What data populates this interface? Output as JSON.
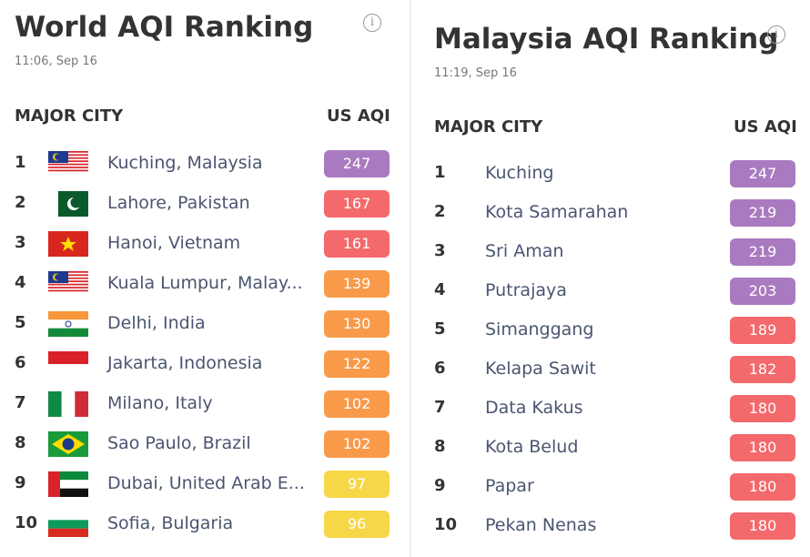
{
  "world": {
    "title": "World AQI Ranking",
    "updated": "11:06, Sep 16",
    "columns": [
      "MAJOR CITY",
      "US AQI"
    ],
    "rows": [
      {
        "rank": 1,
        "city": "Kuching, Malaysia",
        "aqi": 247
      },
      {
        "rank": 2,
        "city": "Lahore, Pakistan",
        "aqi": 167
      },
      {
        "rank": 3,
        "city": "Hanoi, Vietnam",
        "aqi": 161
      },
      {
        "rank": 4,
        "city": "Kuala Lumpur, Malay...",
        "aqi": 139
      },
      {
        "rank": 5,
        "city": "Delhi, India",
        "aqi": 130
      },
      {
        "rank": 6,
        "city": "Jakarta, Indonesia",
        "aqi": 122
      },
      {
        "rank": 7,
        "city": "Milano, Italy",
        "aqi": 102
      },
      {
        "rank": 8,
        "city": "Sao Paulo, Brazil",
        "aqi": 102
      },
      {
        "rank": 9,
        "city": "Dubai, United Arab E...",
        "aqi": 97
      },
      {
        "rank": 10,
        "city": "Sofia, Bulgaria",
        "aqi": 96
      }
    ]
  },
  "malaysia": {
    "title": "Malaysia AQI Ranking",
    "updated": "11:19, Sep 16",
    "columns": [
      "MAJOR CITY",
      "US AQI"
    ],
    "rows": [
      {
        "rank": 1,
        "city": "Kuching",
        "aqi": 247
      },
      {
        "rank": 2,
        "city": "Kota Samarahan",
        "aqi": 219
      },
      {
        "rank": 3,
        "city": "Sri Aman",
        "aqi": 219
      },
      {
        "rank": 4,
        "city": "Putrajaya",
        "aqi": 203
      },
      {
        "rank": 5,
        "city": "Simanggang",
        "aqi": 189
      },
      {
        "rank": 6,
        "city": "Kelapa Sawit",
        "aqi": 182
      },
      {
        "rank": 7,
        "city": "Data Kakus",
        "aqi": 180
      },
      {
        "rank": 8,
        "city": "Kota Belud",
        "aqi": 180
      },
      {
        "rank": 9,
        "city": "Papar",
        "aqi": 180
      },
      {
        "rank": 10,
        "city": "Pekan Nenas",
        "aqi": 180
      }
    ]
  }
}
